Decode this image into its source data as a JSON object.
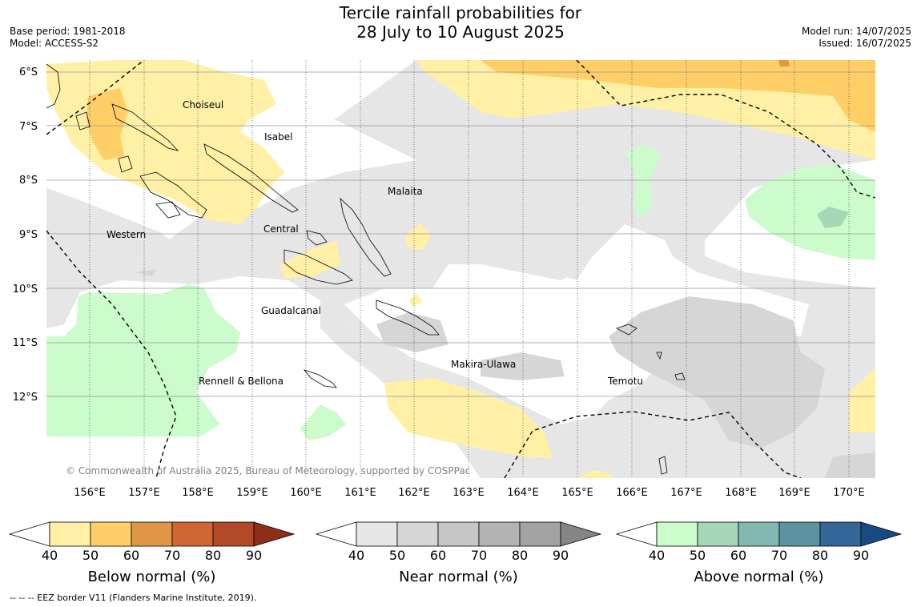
{
  "header": {
    "title_line1": "Tercile rainfall probabilities for",
    "title_line2": "28 July to 10 August 2025",
    "base_period": "Base period: 1981-2018",
    "model": "Model: ACCESS-S2",
    "model_run": "Model run: 14/07/2025",
    "issued": "Issued: 16/07/2025"
  },
  "map": {
    "lat_labels": [
      "6°S",
      "7°S",
      "8°S",
      "9°S",
      "10°S",
      "11°S",
      "12°S"
    ],
    "lon_labels": [
      "156°E",
      "157°E",
      "158°E",
      "159°E",
      "160°E",
      "161°E",
      "162°E",
      "163°E",
      "164°E",
      "165°E",
      "166°E",
      "167°E",
      "168°E",
      "169°E",
      "170°E"
    ],
    "provinces": [
      "Choiseul",
      "Isabel",
      "Malaita",
      "Central",
      "Western",
      "Guadalcanal",
      "Makira-Ulawa",
      "Rennell & Bellona",
      "Temotu"
    ],
    "copyright": "© Commonwealth of Australia 2025, Bureau of Meteorology, supported by COSPPac"
  },
  "colorbars": [
    {
      "title": "Below normal (%)",
      "ticks": [
        "40",
        "50",
        "60",
        "70",
        "80",
        "90"
      ],
      "colors": [
        "#fff0a6",
        "#ffce66",
        "#e19547",
        "#cf6634",
        "#b24a29",
        "#8e2d1a"
      ]
    },
    {
      "title": "Near normal (%)",
      "ticks": [
        "40",
        "50",
        "60",
        "70",
        "80",
        "90"
      ],
      "colors": [
        "#e6e6e6",
        "#d6d6d6",
        "#c6c6c6",
        "#b3b3b3",
        "#a3a3a3",
        "#858585"
      ]
    },
    {
      "title": "Above normal (%)",
      "ticks": [
        "40",
        "50",
        "60",
        "70",
        "80",
        "90"
      ],
      "colors": [
        "#ccfccc",
        "#a4d8b7",
        "#82b8b2",
        "#5b93a0",
        "#33679a",
        "#1a4a82"
      ]
    }
  ],
  "footnote": "--  --  -- EEZ border V11 (Flanders Marine Institute, 2019)."
}
